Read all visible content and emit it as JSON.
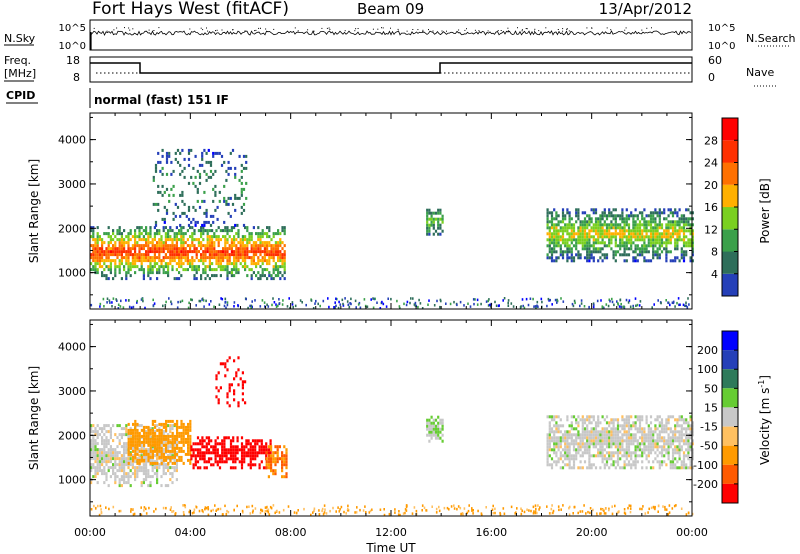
{
  "header": {
    "station": "Fort Hays West (fitACF)",
    "beam": "Beam 09",
    "date": "13/Apr/2012"
  },
  "strip": {
    "nsky_label": "N.Sky",
    "nsearch_label": "N.Search",
    "nsky_ticks": [
      "10^5",
      "10^0"
    ],
    "nsearch_ticks": [
      "10^5",
      "10^0"
    ],
    "freq_label_line1": "Freq.",
    "freq_label_line2": "[MHz]",
    "freq_ticks": [
      "18",
      "8"
    ],
    "nave_label": "Nave",
    "nave_ticks": [
      "60",
      "0"
    ],
    "cpid_label": "CPID",
    "cpid_text": "normal (fast) 151 IF"
  },
  "colors": {
    "power": [
      "#0000ff",
      "#2540b8",
      "#2e6e5a",
      "#3aa04a",
      "#7ad020",
      "#ffb000",
      "#ff7000",
      "#ff3000",
      "#ff0000"
    ],
    "velocity": [
      "#ff0000",
      "#ff5a00",
      "#ff9a00",
      "#ffc060",
      "#c8c8c8",
      "#66cc33",
      "#2e7a5a",
      "#2540b8",
      "#0000ff"
    ],
    "background": "#ffffff"
  },
  "chart_data": [
    {
      "type": "heatmap",
      "name": "power",
      "xlabel": "",
      "ylabel": "Slant Range [km]",
      "xlim_hours": [
        0,
        24
      ],
      "ylim_km": [
        180,
        4600
      ],
      "yticks": [
        1000,
        2000,
        3000,
        4000
      ],
      "colorbar": {
        "label": "Power [dB]",
        "ticks": [
          4,
          8,
          12,
          16,
          20,
          24,
          28
        ],
        "range": [
          0,
          30
        ]
      },
      "echo_regions": [
        {
          "t_start": 0.0,
          "t_end": 7.8,
          "r_low": 900,
          "r_high": 2100,
          "level_core": 26,
          "level_edge": 6
        },
        {
          "t_start": 2.5,
          "t_end": 6.2,
          "r_low": 2100,
          "r_high": 3800,
          "level_core": 10,
          "level_edge": 4
        },
        {
          "t_start": 13.4,
          "t_end": 14.1,
          "r_low": 1900,
          "r_high": 2500,
          "level_core": 14,
          "level_edge": 6
        },
        {
          "t_start": 18.2,
          "t_end": 24.0,
          "r_low": 1300,
          "r_high": 2500,
          "level_core": 18,
          "level_edge": 4
        }
      ]
    },
    {
      "type": "heatmap",
      "name": "velocity",
      "xlabel": "Time UT",
      "ylabel": "Slant Range [km]",
      "xlim_hours": [
        0,
        24
      ],
      "ylim_km": [
        180,
        4600
      ],
      "yticks": [
        1000,
        2000,
        3000,
        4000
      ],
      "xticks": [
        "00:00",
        "04:00",
        "08:00",
        "12:00",
        "16:00",
        "20:00",
        "00:00"
      ],
      "colorbar": {
        "label": "Velocity [m s^-1]",
        "ticks": [
          -200,
          -100,
          -50,
          -15,
          15,
          50,
          100,
          200
        ]
      },
      "echo_regions": [
        {
          "t_start": 0.0,
          "t_end": 3.5,
          "r_low": 900,
          "r_high": 2300,
          "velocity": 0
        },
        {
          "t_start": 1.5,
          "t_end": 4.0,
          "r_low": 1400,
          "r_high": 2400,
          "velocity": -80
        },
        {
          "t_start": 4.0,
          "t_end": 7.2,
          "r_low": 1300,
          "r_high": 2000,
          "velocity": -250
        },
        {
          "t_start": 7.0,
          "t_end": 7.8,
          "r_low": 1100,
          "r_high": 1800,
          "velocity": -100
        },
        {
          "t_start": 5.0,
          "t_end": 6.2,
          "r_low": 2700,
          "r_high": 3800,
          "velocity": -250
        },
        {
          "t_start": 13.4,
          "t_end": 14.1,
          "r_low": 1900,
          "r_high": 2500,
          "velocity": 15
        },
        {
          "t_start": 18.2,
          "t_end": 24.0,
          "r_low": 1300,
          "r_high": 2500,
          "velocity": 0
        }
      ]
    }
  ]
}
